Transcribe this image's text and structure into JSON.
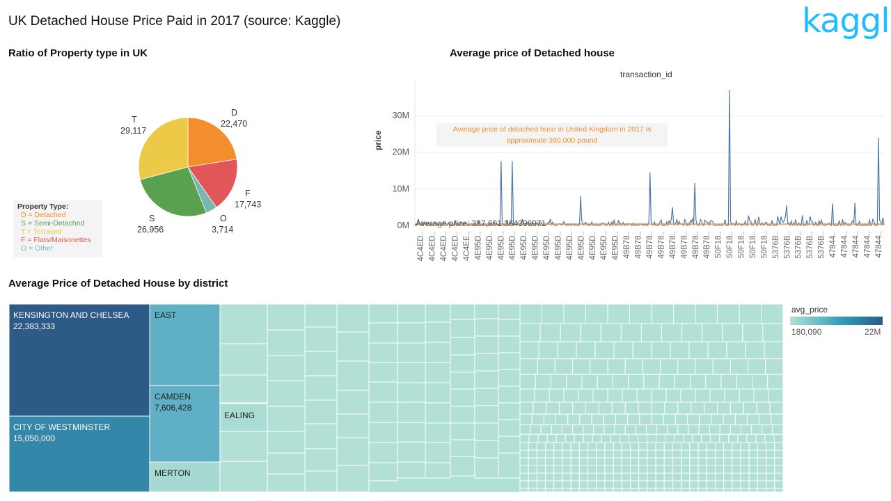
{
  "dashboard": {
    "title": "UK Detached House Price Paid in 2017 (source: Kaggle)",
    "logo_text": "kaggle"
  },
  "pie_section": {
    "title": "Ratio of Property type in UK",
    "legend": {
      "header": "Property Type:",
      "items": [
        {
          "text": "D = Detached",
          "color": "#f28e2b"
        },
        {
          "text": "S = Semi-Detached",
          "color": "#59a14f"
        },
        {
          "text": "T = Terraced",
          "color": "#edc948"
        },
        {
          "text": "F = Flats/Maisonettes",
          "color": "#e15759"
        },
        {
          "text": "O = Other",
          "color": "#76b7b2"
        }
      ]
    },
    "slices": [
      {
        "code": "D",
        "count": "22,470",
        "value": 22470,
        "color": "#f28e2b"
      },
      {
        "code": "F",
        "count": "17,743",
        "value": 17743,
        "color": "#e15759"
      },
      {
        "code": "O",
        "count": "3,714",
        "value": 3714,
        "color": "#76b7b2"
      },
      {
        "code": "S",
        "count": "26,956",
        "value": 26956,
        "color": "#59a14f"
      },
      {
        "code": "T",
        "count": "29,117",
        "value": 29117,
        "color": "#edc948"
      }
    ]
  },
  "line_section": {
    "title": "Average price of Detached house",
    "top_axis_label": "transaction_id",
    "y_axis_label": "price",
    "y_ticks": [
      "0M",
      "10M",
      "20M",
      "30M"
    ],
    "annotation_line1": "Average price of detached huse in United Kingdom in 2017 is",
    "annotation_line2": "approximate 390,000 pound",
    "average_label": "Average price: 387,601.364396971",
    "x_labels": [
      "4C4ED..",
      "4C4ED..",
      "4C4ED..",
      "4C4ED..",
      "4C4EE..",
      "4E95D..",
      "4E95D..",
      "4E95D..",
      "4E95D..",
      "4E95D..",
      "4E95D..",
      "4E95D..",
      "4E95D..",
      "4E95D..",
      "4E95D..",
      "4E95D..",
      "4E95D..",
      "4E95D..",
      "49B78..",
      "49B78..",
      "49B78..",
      "49B78..",
      "49B78..",
      "49B78..",
      "49B78..",
      "49B78..",
      "50F18..",
      "50F18..",
      "50F18..",
      "50F18..",
      "50F18..",
      "5376B..",
      "5376B..",
      "5376B..",
      "5376B..",
      "5376B..",
      "47844..",
      "47844..",
      "47844..",
      "47844..",
      "47844.."
    ],
    "colors": {
      "line": "#4e79a7",
      "average": "#f28e2b"
    }
  },
  "chart_data": {
    "type": "line",
    "title": "Average price of Detached house",
    "xlabel": "transaction_id",
    "ylabel": "price",
    "ylim": [
      0,
      38000000
    ],
    "average": 387601.364396971,
    "spikes": [
      {
        "x_index": 7,
        "value": 17600000
      },
      {
        "x_index": 8,
        "value": 17600000
      },
      {
        "x_index": 14,
        "value": 8000000
      },
      {
        "x_index": 20,
        "value": 14500000
      },
      {
        "x_index": 22,
        "value": 5000000
      },
      {
        "x_index": 24,
        "value": 11600000
      },
      {
        "x_index": 27,
        "value": 37000000
      },
      {
        "x_index": 32,
        "value": 5500000
      },
      {
        "x_index": 36,
        "value": 6000000
      },
      {
        "x_index": 38,
        "value": 6200000
      },
      {
        "x_index": 40,
        "value": 24000000
      }
    ]
  },
  "treemap_section": {
    "title": "Average Price of Detached House by district",
    "legend_title": "avg_price",
    "legend_min": "180,090",
    "legend_max": "22M",
    "districts": [
      {
        "name": "KENSINGTON AND CHELSEA",
        "value": "22,383,333",
        "color": "#2d5a87"
      },
      {
        "name": "CITY OF WESTMINSTER",
        "value": "15,050,000",
        "color": "#3487a8"
      },
      {
        "name": "EAST",
        "value": "",
        "color": "#5fb0c5"
      },
      {
        "name": "CAMDEN",
        "value": "7,606,428",
        "color": "#5fb0c5"
      },
      {
        "name": "MERTON",
        "value": "",
        "color": "#a6d9d2"
      },
      {
        "name": "EALING",
        "value": "",
        "color": "#a9dcd3"
      }
    ],
    "small_color": "#b2e0d6"
  }
}
